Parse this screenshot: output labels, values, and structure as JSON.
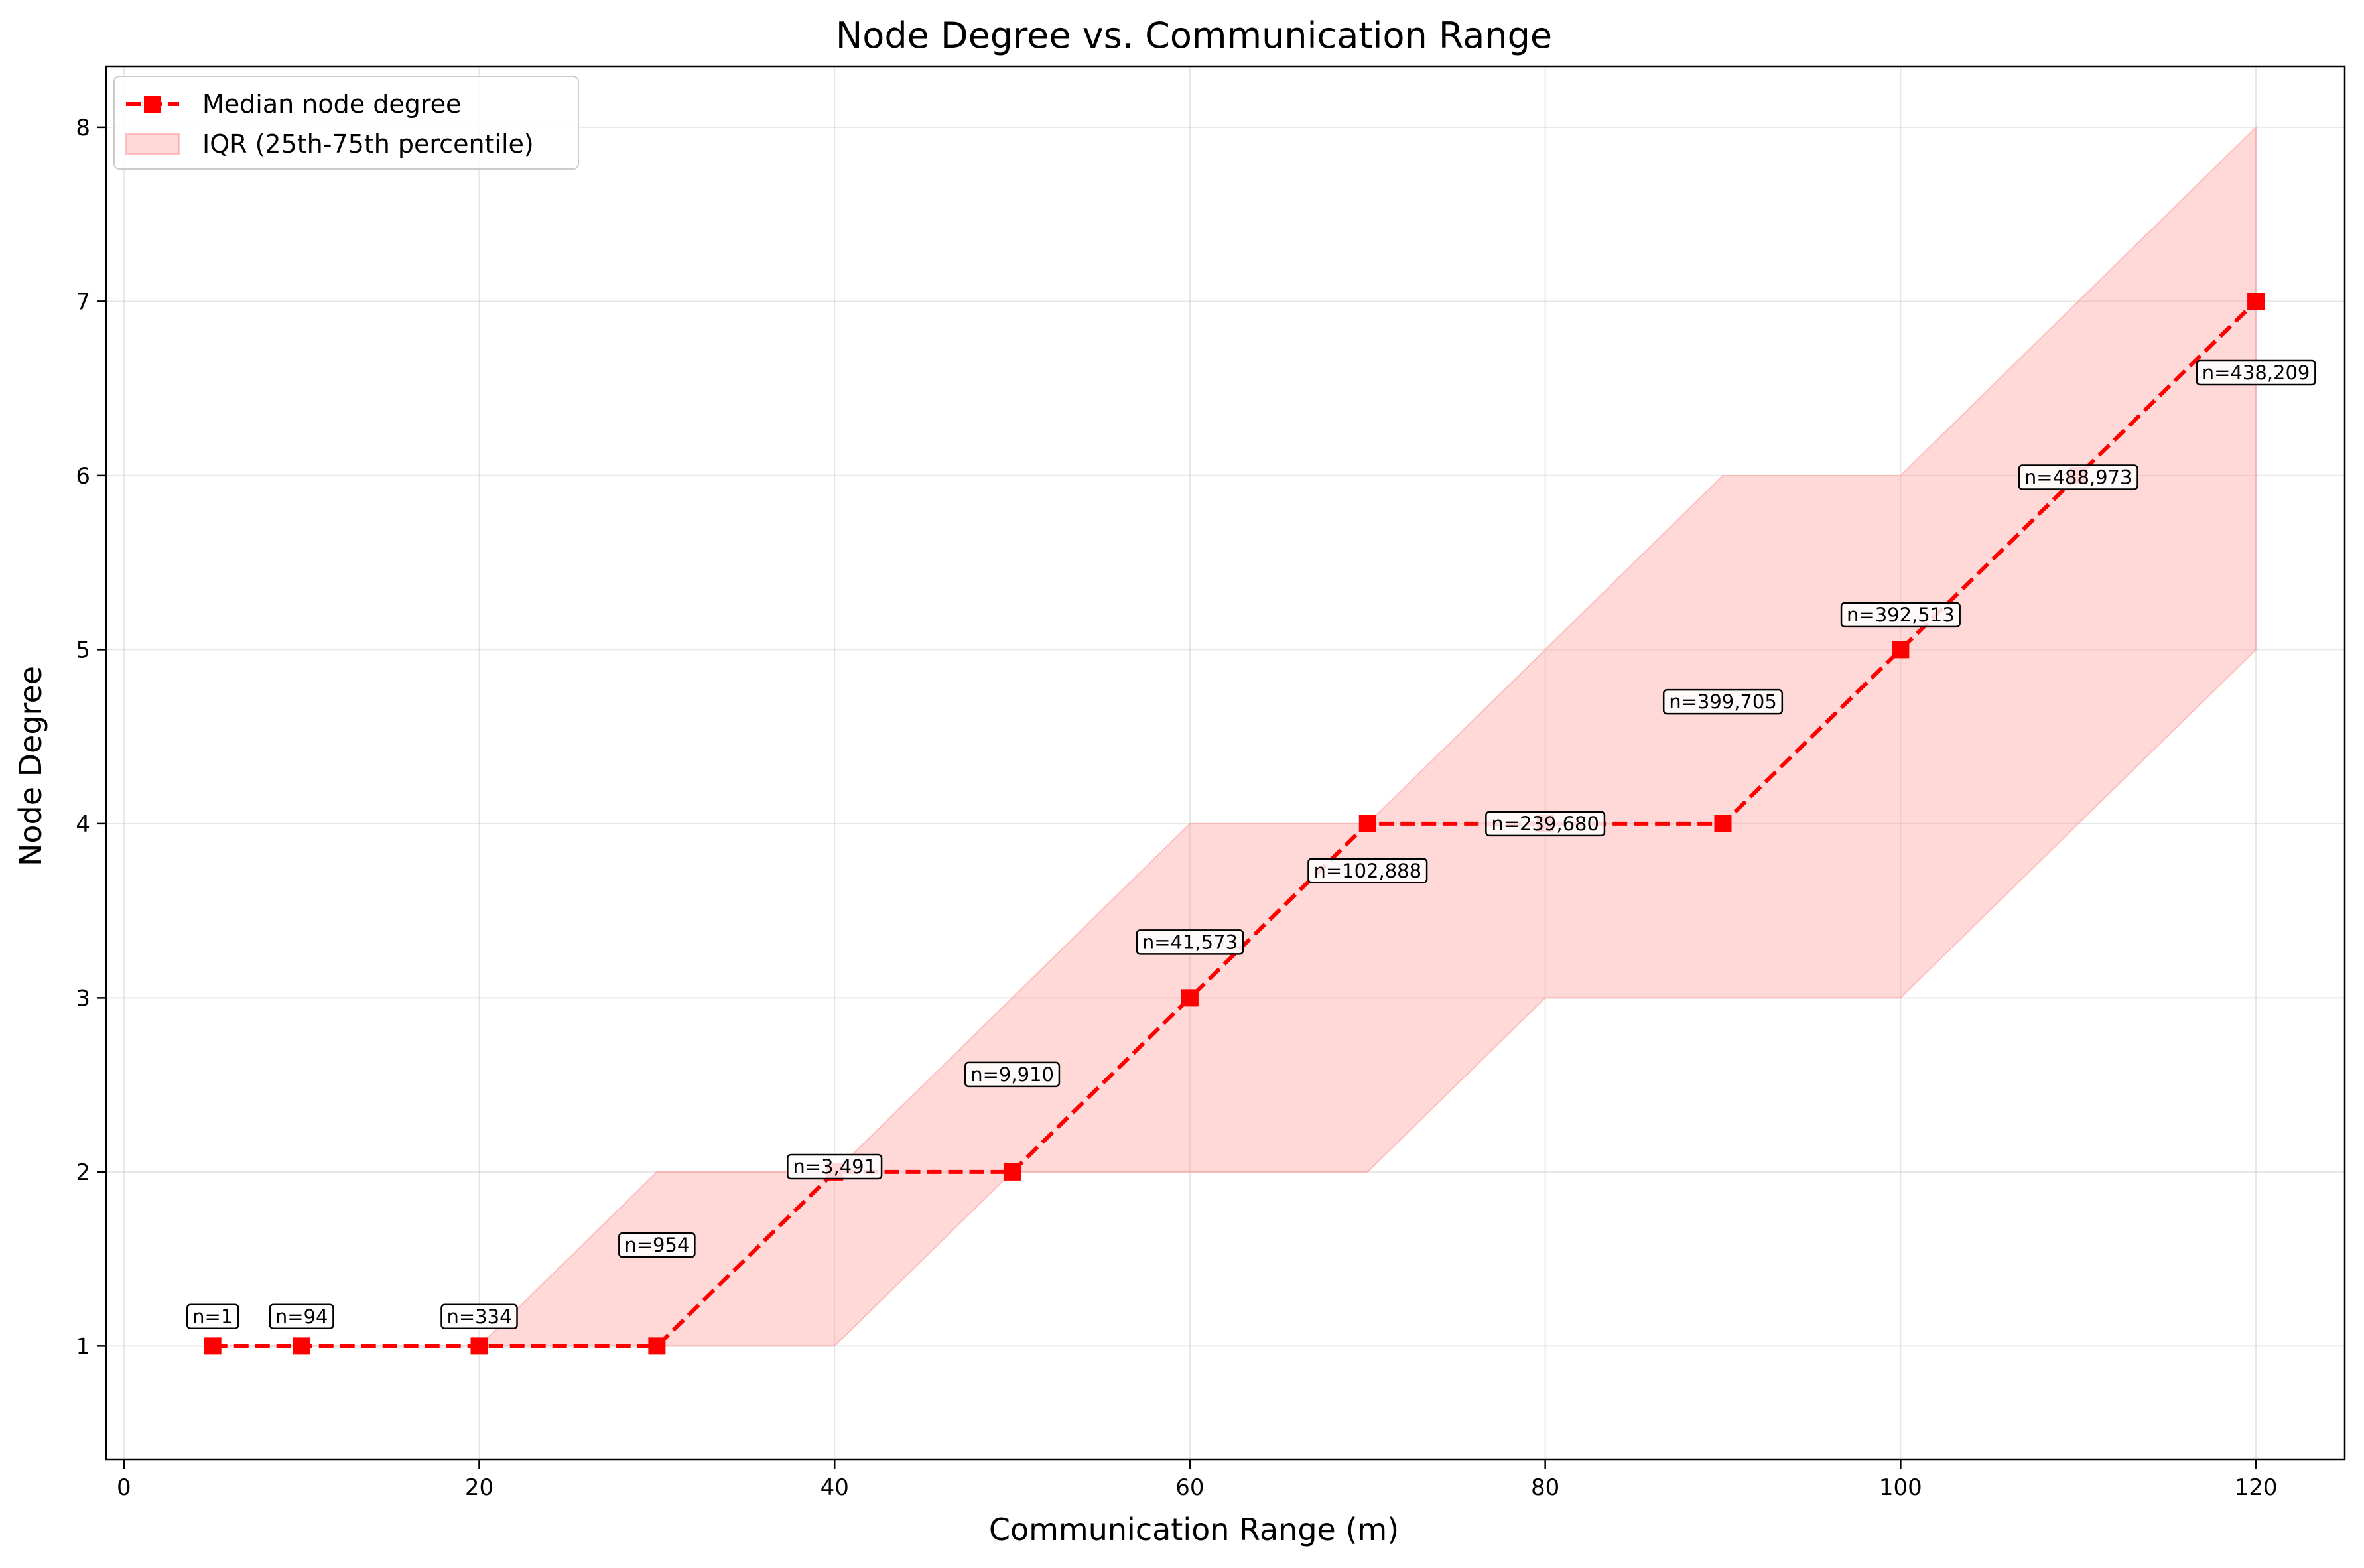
{
  "chart_data": {
    "type": "line",
    "title": "Node Degree vs. Communication Range",
    "xlabel": "Communication Range (m)",
    "ylabel": "Node Degree",
    "xlim": [
      -1,
      125
    ],
    "ylim": [
      0.35,
      8.35
    ],
    "xticks": [
      0,
      20,
      40,
      60,
      80,
      100,
      120
    ],
    "yticks": [
      1,
      2,
      3,
      4,
      5,
      6,
      7,
      8
    ],
    "grid": true,
    "legend_position": "top-left",
    "x": [
      5,
      10,
      20,
      30,
      40,
      50,
      60,
      70,
      80,
      90,
      100,
      110,
      120
    ],
    "series": [
      {
        "name": "Median node degree",
        "values": [
          1,
          1,
          1,
          1,
          2,
          2,
          3,
          4,
          4,
          4,
          5,
          6,
          7
        ],
        "color": "#ff0000",
        "style": "dashed",
        "marker": "square"
      }
    ],
    "band": {
      "name": "IQR (25th-75th percentile)",
      "lower": [
        1,
        1,
        1,
        1,
        1,
        2,
        2,
        2,
        3,
        3,
        3,
        4,
        5
      ],
      "upper": [
        1,
        1,
        1,
        2,
        2,
        3,
        4,
        4,
        5,
        6,
        6,
        7,
        8
      ],
      "color": "#ff9999"
    },
    "annotations": [
      {
        "text": "n=1",
        "x": 5,
        "y": 1.17
      },
      {
        "text": "n=94",
        "x": 10,
        "y": 1.17
      },
      {
        "text": "n=334",
        "x": 20,
        "y": 1.17
      },
      {
        "text": "n=954",
        "x": 30,
        "y": 1.58
      },
      {
        "text": "n=3,491",
        "x": 40,
        "y": 2.03
      },
      {
        "text": "n=9,910",
        "x": 50,
        "y": 2.56
      },
      {
        "text": "n=41,573",
        "x": 60,
        "y": 3.32
      },
      {
        "text": "n=102,888",
        "x": 70,
        "y": 3.73
      },
      {
        "text": "n=239,680",
        "x": 80,
        "y": 4.0
      },
      {
        "text": "n=399,705",
        "x": 90,
        "y": 4.7
      },
      {
        "text": "n=392,513",
        "x": 100,
        "y": 5.2
      },
      {
        "text": "n=488,973",
        "x": 110,
        "y": 5.99
      },
      {
        "text": "n=438,209",
        "x": 120,
        "y": 6.59
      }
    ]
  }
}
